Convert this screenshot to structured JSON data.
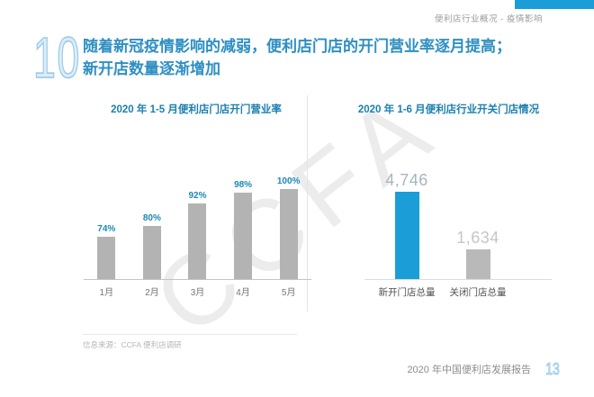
{
  "slide": {
    "header_tag": "便利店行业概况 - 疫情影响",
    "slide_number": "10",
    "title_line1": "随着新冠疫情影响的减弱，便利店门店的开门营业率逐月提高；",
    "title_line2": "新开店数量逐渐增加",
    "watermark": "CCFA",
    "source_note": "信息来源：CCFA 便利店调研",
    "footer_report_title": "2020 年中国便利店发展报告",
    "page_number": "13"
  },
  "colors": {
    "accent_blue": "#1b9ed8",
    "title_blue": "#2e8fc2",
    "chart_title_blue": "#1a7fb0",
    "pct_label_blue": "#1a88ba",
    "bar_gray": "#b3b3b3",
    "outline_number_blue": "#a0cde9",
    "watermark_gray": "#ececec"
  },
  "chart_data": [
    {
      "type": "bar",
      "title": "2020 年 1-5 月便利店门店开门营业率",
      "categories": [
        "1月",
        "2月",
        "3月",
        "4月",
        "5月"
      ],
      "values": [
        74,
        80,
        92,
        98,
        100
      ],
      "value_labels": [
        "74%",
        "80%",
        "92%",
        "98%",
        "100%"
      ],
      "unit": "%",
      "bar_color": "#b3b3b3",
      "label_color": "#1a88ba",
      "ylim": [
        51,
        100
      ],
      "grid": false,
      "legend": false
    },
    {
      "type": "bar",
      "title": "2020 年 1-6 月便利店行业开关门店情况",
      "categories": [
        "新开门店总量",
        "关闭门店总量"
      ],
      "values": [
        4746,
        1634
      ],
      "value_labels": [
        "4,746",
        "1,634"
      ],
      "bar_colors": [
        "#1b9ed8",
        "#b9b9b9"
      ],
      "value_label_colors": [
        "#a5b6bf",
        "#c4c6c8"
      ],
      "ylim": [
        0,
        4746
      ],
      "grid": false,
      "legend": false
    }
  ]
}
